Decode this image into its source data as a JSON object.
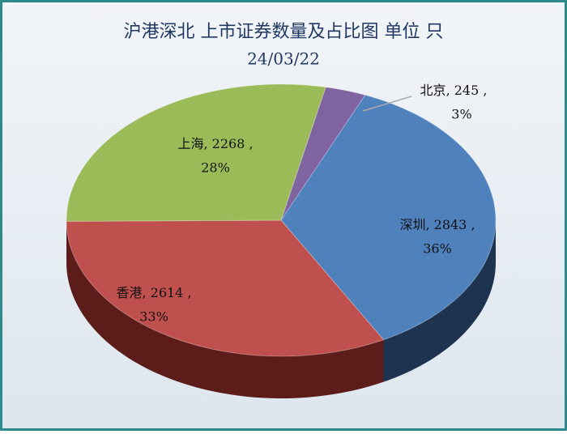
{
  "chart_data": {
    "type": "pie",
    "title": "沪港深北 上市证券数量及占比图   单位 只",
    "subtitle": "24/03/22",
    "categories": [
      "北京",
      "深圳",
      "香港",
      "上海"
    ],
    "values": [
      245,
      2843,
      2614,
      2268
    ],
    "value_labels": [
      "245 ,",
      "2843 ,",
      "2614 ,",
      "2268 ,"
    ],
    "percent_labels": [
      "3%",
      "36%",
      "33%",
      "28%"
    ],
    "label_separator": ", ",
    "colors": [
      "#8064a2",
      "#4f81bd",
      "#c0504d",
      "#9bbb59"
    ],
    "side_colors": [
      "#3f2f55",
      "#1e3350",
      "#5c1c1a",
      "#4a5c28"
    ]
  }
}
